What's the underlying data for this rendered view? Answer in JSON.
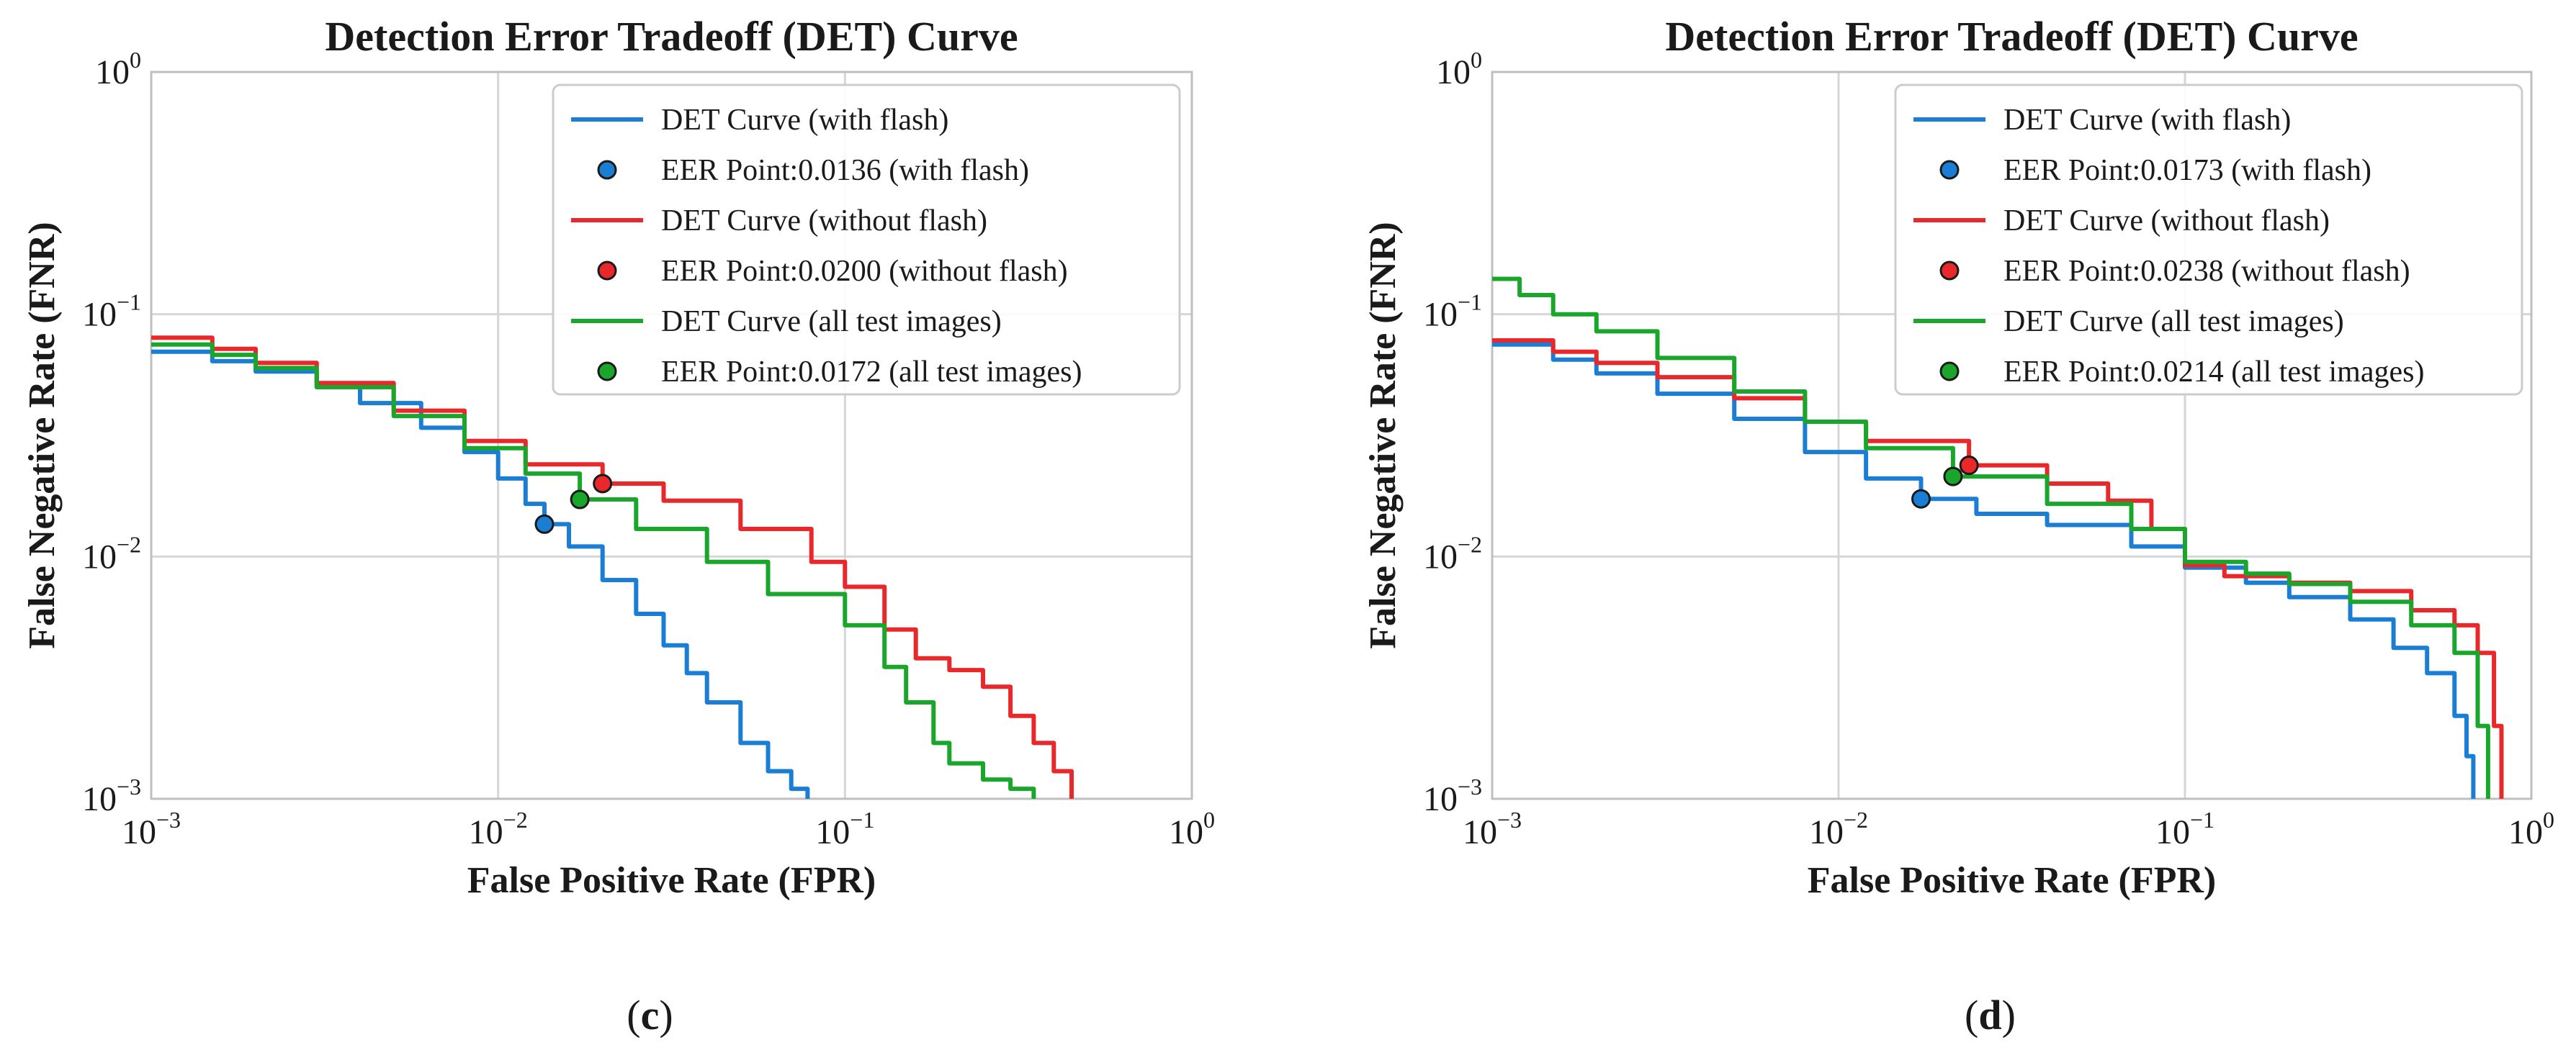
{
  "chart_data": [
    {
      "type": "line",
      "panel_label": "c",
      "title": "Detection Error Tradeoff (DET) Curve",
      "xlabel": "False Positive Rate (FPR)",
      "ylabel": "False Negative Rate (FNR)",
      "xscale": "log",
      "yscale": "log",
      "xlim": [
        0.001,
        1
      ],
      "ylim": [
        0.001,
        1
      ],
      "xticks": [
        {
          "base": "10",
          "exp": "−3"
        },
        {
          "base": "10",
          "exp": "−2"
        },
        {
          "base": "10",
          "exp": "−1"
        },
        {
          "base": "10",
          "exp": "0"
        }
      ],
      "yticks": [
        {
          "base": "10",
          "exp": "−3"
        },
        {
          "base": "10",
          "exp": "−2"
        },
        {
          "base": "10",
          "exp": "−1"
        },
        {
          "base": "10",
          "exp": "0"
        }
      ],
      "grid": true,
      "legend_position": "top-right",
      "series": [
        {
          "name": "DET Curve (with flash)",
          "color": "#1a7fd4",
          "x": [
            0.001,
            0.0015,
            0.002,
            0.003,
            0.004,
            0.006,
            0.008,
            0.01,
            0.012,
            0.0136,
            0.016,
            0.02,
            0.025,
            0.03,
            0.035,
            0.04,
            0.05,
            0.06,
            0.07,
            0.078
          ],
          "y": [
            0.07,
            0.064,
            0.058,
            0.05,
            0.043,
            0.034,
            0.027,
            0.021,
            0.0165,
            0.0136,
            0.011,
            0.008,
            0.0058,
            0.0043,
            0.0033,
            0.0025,
            0.0017,
            0.0013,
            0.0011,
            0.001
          ]
        },
        {
          "name": "DET Curve (without flash)",
          "color": "#e8282b",
          "x": [
            0.001,
            0.0015,
            0.002,
            0.003,
            0.005,
            0.008,
            0.012,
            0.02,
            0.03,
            0.05,
            0.08,
            0.1,
            0.13,
            0.16,
            0.2,
            0.25,
            0.3,
            0.35,
            0.4,
            0.45
          ],
          "y": [
            0.08,
            0.072,
            0.063,
            0.052,
            0.04,
            0.03,
            0.024,
            0.02,
            0.017,
            0.013,
            0.0095,
            0.0075,
            0.005,
            0.0038,
            0.0034,
            0.0029,
            0.0022,
            0.0017,
            0.0013,
            0.001
          ]
        },
        {
          "name": "DET Curve (all test images)",
          "color": "#1aa62b",
          "x": [
            0.001,
            0.0015,
            0.002,
            0.003,
            0.005,
            0.008,
            0.012,
            0.0172,
            0.025,
            0.04,
            0.06,
            0.1,
            0.13,
            0.15,
            0.18,
            0.2,
            0.25,
            0.3,
            0.35
          ],
          "y": [
            0.075,
            0.068,
            0.06,
            0.05,
            0.038,
            0.028,
            0.022,
            0.0172,
            0.013,
            0.0095,
            0.007,
            0.0052,
            0.0035,
            0.0025,
            0.0017,
            0.0014,
            0.0012,
            0.0011,
            0.001
          ]
        }
      ],
      "eer_points": [
        {
          "name": "EER Point:0.0136 (with flash)",
          "x": 0.0136,
          "y": 0.0136,
          "color": "#1a7fd4"
        },
        {
          "name": "EER Point:0.0200 (without flash)",
          "x": 0.02,
          "y": 0.02,
          "color": "#e8282b"
        },
        {
          "name": "EER Point:0.0172 (all test images)",
          "x": 0.0172,
          "y": 0.0172,
          "color": "#1aa62b"
        }
      ],
      "legend": [
        {
          "label": "DET Curve (with flash)",
          "kind": "line",
          "color": "#1a7fd4"
        },
        {
          "label": "EER Point:0.0136 (with flash)",
          "kind": "marker",
          "color": "#1a7fd4"
        },
        {
          "label": "DET Curve (without flash)",
          "kind": "line",
          "color": "#e8282b"
        },
        {
          "label": "EER Point:0.0200 (without flash)",
          "kind": "marker",
          "color": "#e8282b"
        },
        {
          "label": "DET Curve (all test images)",
          "kind": "line",
          "color": "#1aa62b"
        },
        {
          "label": "EER Point:0.0172 (all test images)",
          "kind": "marker",
          "color": "#1aa62b"
        }
      ]
    },
    {
      "type": "line",
      "panel_label": "d",
      "title": "Detection Error Tradeoff (DET) Curve",
      "xlabel": "False Positive Rate (FPR)",
      "ylabel": "False Negative Rate (FNR)",
      "xscale": "log",
      "yscale": "log",
      "xlim": [
        0.001,
        1
      ],
      "ylim": [
        0.001,
        1
      ],
      "xticks": [
        {
          "base": "10",
          "exp": "−3"
        },
        {
          "base": "10",
          "exp": "−2"
        },
        {
          "base": "10",
          "exp": "−1"
        },
        {
          "base": "10",
          "exp": "0"
        }
      ],
      "yticks": [
        {
          "base": "10",
          "exp": "−3"
        },
        {
          "base": "10",
          "exp": "−2"
        },
        {
          "base": "10",
          "exp": "−1"
        },
        {
          "base": "10",
          "exp": "0"
        }
      ],
      "grid": true,
      "legend_position": "top-right",
      "series": [
        {
          "name": "DET Curve (with flash)",
          "color": "#1a7fd4",
          "x": [
            0.001,
            0.0015,
            0.002,
            0.003,
            0.005,
            0.008,
            0.012,
            0.0173,
            0.025,
            0.04,
            0.07,
            0.1,
            0.15,
            0.2,
            0.3,
            0.4,
            0.5,
            0.6,
            0.65,
            0.68
          ],
          "y": [
            0.075,
            0.065,
            0.057,
            0.047,
            0.037,
            0.027,
            0.021,
            0.0173,
            0.015,
            0.0135,
            0.011,
            0.009,
            0.0078,
            0.0068,
            0.0055,
            0.0042,
            0.0033,
            0.0022,
            0.0015,
            0.001
          ]
        },
        {
          "name": "DET Curve (without flash)",
          "color": "#e8282b",
          "x": [
            0.001,
            0.0015,
            0.002,
            0.003,
            0.005,
            0.008,
            0.012,
            0.0238,
            0.04,
            0.06,
            0.08,
            0.1,
            0.13,
            0.2,
            0.3,
            0.45,
            0.6,
            0.7,
            0.78,
            0.82
          ],
          "y": [
            0.078,
            0.07,
            0.063,
            0.055,
            0.045,
            0.036,
            0.03,
            0.0238,
            0.02,
            0.017,
            0.013,
            0.0092,
            0.0083,
            0.0078,
            0.0072,
            0.006,
            0.0052,
            0.004,
            0.002,
            0.001
          ]
        },
        {
          "name": "DET Curve (all test images)",
          "color": "#1aa62b",
          "x": [
            0.001,
            0.0012,
            0.0015,
            0.002,
            0.003,
            0.005,
            0.008,
            0.012,
            0.0214,
            0.04,
            0.07,
            0.1,
            0.15,
            0.2,
            0.3,
            0.45,
            0.6,
            0.7,
            0.75
          ],
          "y": [
            0.14,
            0.12,
            0.1,
            0.085,
            0.066,
            0.048,
            0.036,
            0.028,
            0.0214,
            0.0165,
            0.013,
            0.0095,
            0.0085,
            0.0077,
            0.0065,
            0.0052,
            0.004,
            0.002,
            0.001
          ]
        }
      ],
      "eer_points": [
        {
          "name": "EER Point:0.0173 (with flash)",
          "x": 0.0173,
          "y": 0.0173,
          "color": "#1a7fd4"
        },
        {
          "name": "EER Point:0.0238 (without flash)",
          "x": 0.0238,
          "y": 0.0238,
          "color": "#e8282b"
        },
        {
          "name": "EER Point:0.0214 (all test images)",
          "x": 0.0214,
          "y": 0.0214,
          "color": "#1aa62b"
        }
      ],
      "legend": [
        {
          "label": "DET Curve (with flash)",
          "kind": "line",
          "color": "#1a7fd4"
        },
        {
          "label": "EER Point:0.0173 (with flash)",
          "kind": "marker",
          "color": "#1a7fd4"
        },
        {
          "label": "DET Curve (without flash)",
          "kind": "line",
          "color": "#e8282b"
        },
        {
          "label": "EER Point:0.0238 (without flash)",
          "kind": "marker",
          "color": "#e8282b"
        },
        {
          "label": "DET Curve (all test images)",
          "kind": "line",
          "color": "#1aa62b"
        },
        {
          "label": "EER Point:0.0214 (all test images)",
          "kind": "marker",
          "color": "#1aa62b"
        }
      ]
    }
  ]
}
